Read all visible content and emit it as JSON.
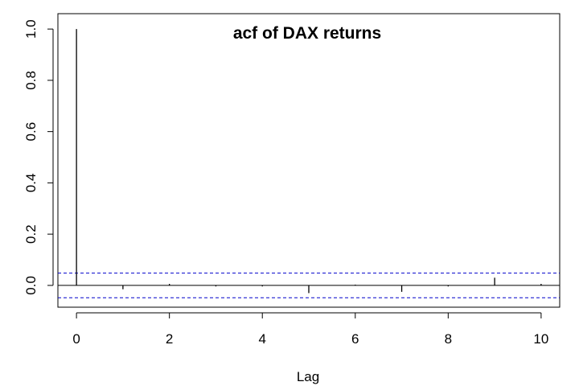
{
  "chart_data": {
    "type": "bar",
    "title": "acf of DAX returns",
    "xlabel": "Lag",
    "ylabel": "",
    "x": [
      0,
      1,
      2,
      3,
      4,
      5,
      6,
      7,
      8,
      9,
      10
    ],
    "values": [
      1.0,
      -0.015,
      0.006,
      -0.004,
      -0.004,
      -0.03,
      0.003,
      -0.025,
      -0.004,
      0.03,
      0.006
    ],
    "confidence_bound": 0.048,
    "xlim": [
      -0.4,
      10.4
    ],
    "ylim": [
      -0.085,
      1.06
    ],
    "xticks": [
      "0",
      "2",
      "4",
      "6",
      "8",
      "10"
    ],
    "yticks": [
      "0.0",
      "0.2",
      "0.4",
      "0.6",
      "0.8",
      "1.0"
    ],
    "zero_line": true,
    "grid": false,
    "colors": {
      "bars": "#000000",
      "confidence": "#0000cc",
      "frame": "#000000"
    }
  }
}
